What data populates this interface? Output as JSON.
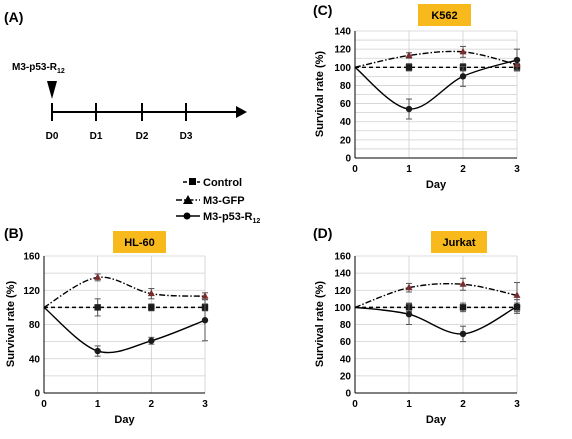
{
  "panel_a": {
    "letter": "(A)",
    "treatment_label": "M3-p53-R",
    "treatment_subscript": "12",
    "timeline_labels": [
      "D0",
      "D1",
      "D2",
      "D3"
    ]
  },
  "legend": {
    "items": [
      {
        "label": "Control",
        "marker": "square",
        "dash": "dashed"
      },
      {
        "label": "M3-GFP",
        "marker": "triangle",
        "dash": "dashdot"
      },
      {
        "label": "M3-p53-R",
        "subscript": "12",
        "marker": "circle",
        "dash": "solid"
      }
    ]
  },
  "colors": {
    "badge": "#f7b91b",
    "line": "#000000",
    "triangle": "#7a2b2b",
    "grid": "#d0d0d0"
  },
  "chart_data": [
    {
      "panel": "(B)",
      "type": "line",
      "cell_line": "HL-60",
      "xlabel": "Day",
      "ylabel": "Survival rate (%)",
      "x": [
        0,
        1,
        2,
        3
      ],
      "ylim": [
        0,
        160
      ],
      "yticks": [
        0,
        20,
        40,
        60,
        80,
        100,
        120,
        140,
        160
      ],
      "grid": true,
      "series": [
        {
          "name": "Control",
          "values": [
            100,
            100,
            100,
            100
          ],
          "errors": [
            0,
            10,
            4,
            4
          ]
        },
        {
          "name": "M3-GFP",
          "values": [
            100,
            135,
            116,
            113
          ],
          "errors": [
            0,
            4,
            6,
            4
          ]
        },
        {
          "name": "M3-p53-R12",
          "values": [
            100,
            49,
            61,
            85
          ],
          "errors": [
            0,
            6,
            4,
            24
          ]
        }
      ]
    },
    {
      "panel": "(C)",
      "type": "line",
      "cell_line": "K562",
      "xlabel": "Day",
      "ylabel": "Survival rate (%)",
      "x": [
        0,
        1,
        2,
        3
      ],
      "ylim": [
        0,
        140
      ],
      "yticks": [
        0,
        10,
        20,
        30,
        40,
        50,
        60,
        70,
        80,
        90,
        100,
        110,
        120,
        130,
        140
      ],
      "grid": true,
      "series": [
        {
          "name": "Control",
          "values": [
            100,
            100,
            100,
            100
          ],
          "errors": [
            0,
            4,
            4,
            4
          ]
        },
        {
          "name": "M3-GFP",
          "values": [
            100,
            113,
            117,
            103
          ],
          "errors": [
            0,
            3,
            6,
            6
          ]
        },
        {
          "name": "M3-p53-R12",
          "values": [
            100,
            54,
            90,
            108
          ],
          "errors": [
            0,
            11,
            11,
            12
          ]
        }
      ]
    },
    {
      "panel": "(D)",
      "type": "line",
      "cell_line": "Jurkat",
      "xlabel": "Day",
      "ylabel": "Survival rate (%)",
      "x": [
        0,
        1,
        2,
        3
      ],
      "ylim": [
        0,
        160
      ],
      "yticks": [
        0,
        20,
        40,
        60,
        80,
        100,
        120,
        140,
        160
      ],
      "grid": true,
      "series": [
        {
          "name": "Control",
          "values": [
            100,
            100,
            100,
            100
          ],
          "errors": [
            0,
            5,
            5,
            5
          ]
        },
        {
          "name": "M3-GFP",
          "values": [
            100,
            123,
            127,
            114
          ],
          "errors": [
            0,
            5,
            7,
            15
          ]
        },
        {
          "name": "M3-p53-R12",
          "values": [
            100,
            92,
            69,
            101
          ],
          "errors": [
            0,
            12,
            9,
            8
          ]
        }
      ]
    }
  ]
}
